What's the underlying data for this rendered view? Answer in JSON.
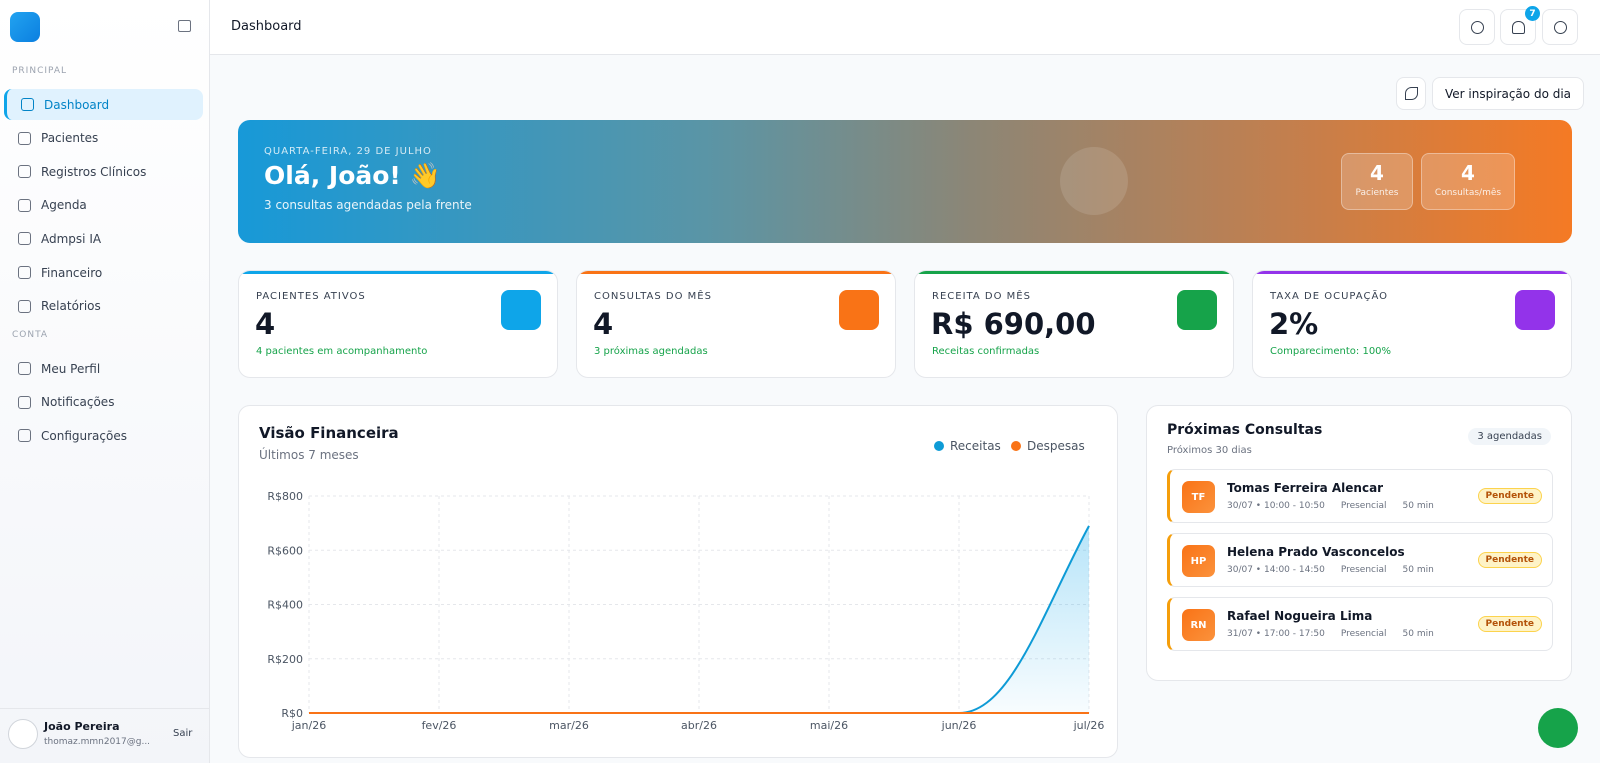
{
  "header": {
    "title": "Dashboard",
    "notification_count": 7
  },
  "sidebar": {
    "sections": [
      {
        "title": "PRINCIPAL",
        "items": [
          "Dashboard",
          "Pacientes",
          "Registros Clínicos",
          "Agenda",
          "Admpsi IA",
          "Financeiro",
          "Relatórios"
        ]
      },
      {
        "title": "CONTA",
        "items": [
          "Meu Perfil",
          "Notificações",
          "Configurações"
        ]
      }
    ],
    "user": {
      "name": "João Pereira",
      "email": "thomaz.mmn2017@g...",
      "logout": "Sair"
    }
  },
  "inspiration_button": "Ver inspiração do dia",
  "hero": {
    "date": "QUARTA-FEIRA, 29 DE JULHO",
    "greeting": "Olá, João! 👋",
    "subtitle": "3 consultas agendadas pela frente",
    "stats": [
      {
        "value": 4,
        "label": "Pacientes"
      },
      {
        "value": 4,
        "label": "Consultas/mês"
      }
    ]
  },
  "kpis": [
    {
      "label": "PACIENTES ATIVOS",
      "value": "4",
      "note": "4 pacientes em acompanhamento",
      "color": "#0ea5e9"
    },
    {
      "label": "CONSULTAS DO MÊS",
      "value": "4",
      "note": "3 próximas agendadas",
      "color": "#f97316"
    },
    {
      "label": "RECEITA DO MÊS",
      "value": "R$ 690,00",
      "note": "Receitas confirmadas",
      "color": "#16a34a"
    },
    {
      "label": "TAXA DE OCUPAÇÃO",
      "value": "2%",
      "note": "Comparecimento: 100%",
      "color": "#9333ea"
    }
  ],
  "chart_data": {
    "type": "line",
    "title": "Visão Financeira",
    "subtitle": "Últimos 7 meses",
    "categories": [
      "jan/26",
      "fev/26",
      "mar/26",
      "abr/26",
      "mai/26",
      "jun/26",
      "jul/26"
    ],
    "series": [
      {
        "name": "Receitas",
        "color": "#0e9bd6",
        "values": [
          0,
          0,
          0,
          0,
          0,
          0,
          690
        ]
      },
      {
        "name": "Despesas",
        "color": "#f97316",
        "values": [
          0,
          0,
          0,
          0,
          0,
          0,
          0
        ]
      }
    ],
    "ylim": [
      0,
      800
    ],
    "yticks": [
      {
        "value": 0,
        "label": "R$0"
      },
      {
        "value": 200,
        "label": "R$200"
      },
      {
        "value": 400,
        "label": "R$400"
      },
      {
        "value": 600,
        "label": "R$600"
      },
      {
        "value": 800,
        "label": "R$800"
      }
    ],
    "grid": true
  },
  "appointments": {
    "title": "Próximas Consultas",
    "subtitle": "Próximos 30 dias",
    "badge": "3 agendadas",
    "items": [
      {
        "initials": "TF",
        "name": "Tomas Ferreira Alencar",
        "time": "30/07 • 10:00 - 10:50",
        "mode": "Presencial",
        "duration": "50 min",
        "status": "Pendente"
      },
      {
        "initials": "HP",
        "name": "Helena Prado Vasconcelos",
        "time": "30/07 • 14:00 - 14:50",
        "mode": "Presencial",
        "duration": "50 min",
        "status": "Pendente"
      },
      {
        "initials": "RN",
        "name": "Rafael Nogueira Lima",
        "time": "31/07 • 17:00 - 17:50",
        "mode": "Presencial",
        "duration": "50 min",
        "status": "Pendente"
      }
    ]
  }
}
